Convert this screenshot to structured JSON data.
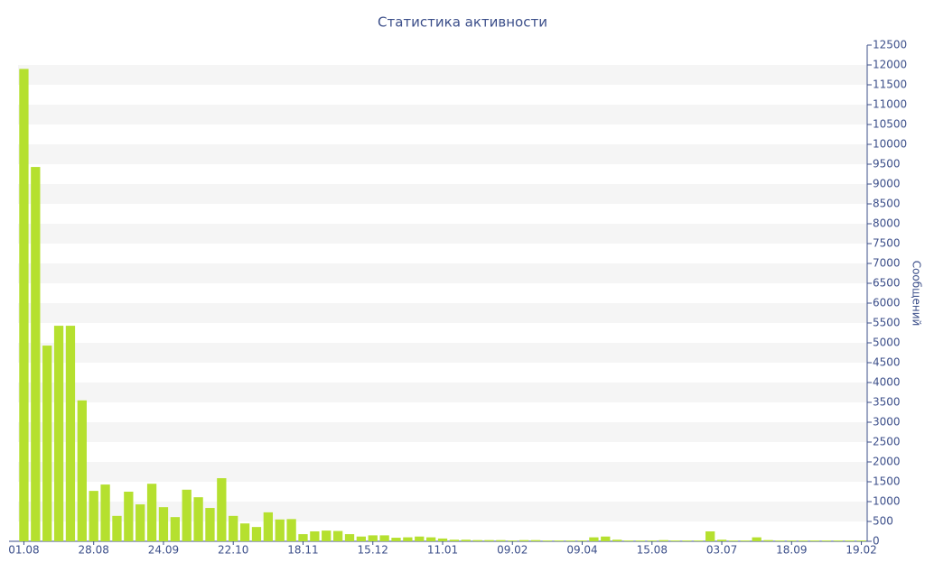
{
  "chart_data": {
    "type": "bar",
    "title": "Статистика активности",
    "y_label": "Сообщений",
    "categories": [
      "01.08",
      null,
      null,
      null,
      null,
      null,
      "28.08",
      null,
      null,
      null,
      null,
      null,
      "24.09",
      null,
      null,
      null,
      null,
      null,
      "22.10",
      null,
      null,
      null,
      null,
      null,
      "18.11",
      null,
      null,
      null,
      null,
      null,
      "15.12",
      null,
      null,
      null,
      null,
      null,
      "11.01",
      null,
      null,
      null,
      null,
      null,
      "09.02",
      null,
      null,
      null,
      null,
      null,
      "09.04",
      null,
      null,
      null,
      null,
      null,
      "15.08",
      null,
      null,
      null,
      null,
      null,
      "03.07",
      null,
      null,
      null,
      null,
      null,
      "18.09",
      null,
      null,
      null,
      null,
      null,
      "19.02"
    ],
    "values": [
      11900,
      9430,
      4930,
      5430,
      5430,
      3550,
      1270,
      1430,
      640,
      1250,
      930,
      1450,
      860,
      610,
      1300,
      1110,
      840,
      1590,
      640,
      450,
      360,
      730,
      550,
      560,
      180,
      250,
      270,
      260,
      180,
      120,
      150,
      150,
      90,
      100,
      120,
      100,
      70,
      40,
      40,
      30,
      30,
      30,
      20,
      30,
      30,
      20,
      20,
      20,
      20,
      100,
      120,
      40,
      20,
      20,
      20,
      30,
      20,
      20,
      20,
      250,
      40,
      20,
      20,
      100,
      30,
      20,
      20,
      20,
      20,
      20,
      20,
      20,
      20
    ],
    "color": "#b5e02f",
    "ylim": [
      0,
      12500
    ],
    "yticks": [
      0,
      500,
      1000,
      1500,
      2000,
      2500,
      3000,
      3500,
      4000,
      4500,
      5000,
      5500,
      6000,
      6500,
      7000,
      7500,
      8000,
      8500,
      9000,
      9500,
      10000,
      10500,
      11000,
      11500,
      12000,
      12500
    ],
    "grid": true
  }
}
